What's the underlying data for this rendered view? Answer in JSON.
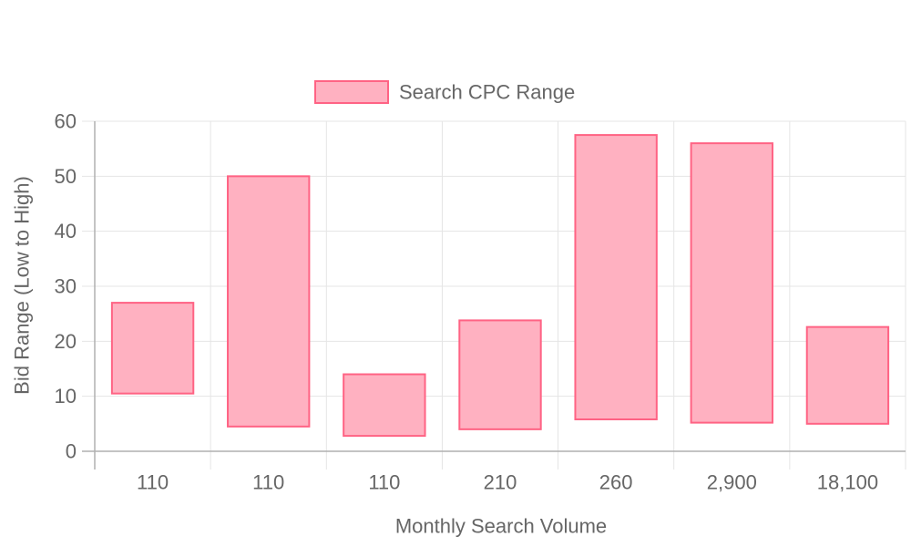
{
  "chart_data": {
    "type": "bar",
    "subtype": "floating-range",
    "categories": [
      "110",
      "110",
      "110",
      "210",
      "260",
      "2,900",
      "18,100"
    ],
    "series": [
      {
        "name": "Search CPC Range",
        "ranges": [
          [
            10.5,
            27.0
          ],
          [
            4.5,
            50.0
          ],
          [
            2.8,
            14.0
          ],
          [
            4.0,
            23.8
          ],
          [
            5.8,
            57.5
          ],
          [
            5.2,
            56.0
          ],
          [
            5.0,
            22.6
          ]
        ]
      }
    ],
    "xlabel": "Monthly Search Volume",
    "ylabel": "Bid Range (Low to High)",
    "ylim": [
      0,
      60
    ],
    "yticks": [
      "0",
      "10",
      "20",
      "30",
      "40",
      "50",
      "60"
    ],
    "grid": true,
    "legend": "top-center",
    "colors": {
      "bar_fill": "#ffb1c1",
      "bar_stroke": "#ff6384",
      "grid": "#e5e5e5",
      "axis": "#b0b0b0",
      "text": "#666666"
    }
  }
}
